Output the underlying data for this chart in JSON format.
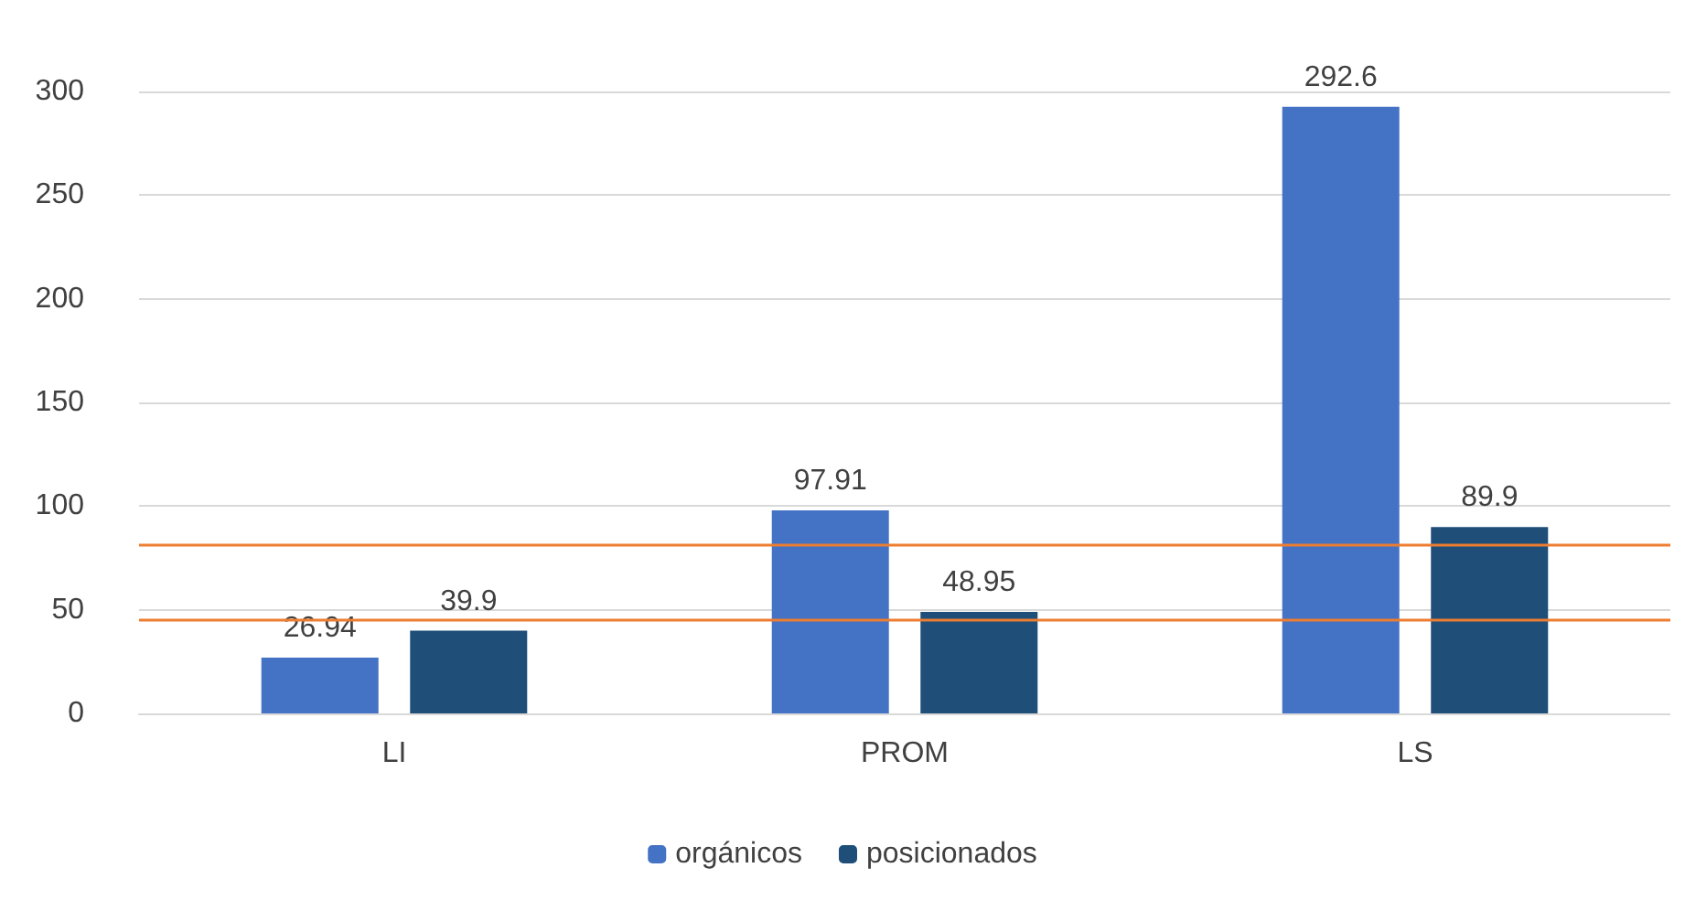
{
  "chart_data": {
    "type": "bar",
    "categories": [
      "LI",
      "PROM",
      "LS"
    ],
    "series": [
      {
        "name": "orgánicos",
        "color": "#4472c4",
        "values": [
          26.94,
          97.91,
          292.6
        ]
      },
      {
        "name": "posicionados",
        "color": "#1f4e79",
        "values": [
          39.9,
          48.95,
          89.9
        ]
      }
    ],
    "ylim": [
      0,
      300
    ],
    "yticks": [
      0,
      50,
      100,
      150,
      200,
      250,
      300
    ],
    "grid": "y",
    "legend": "bottom",
    "data_labels": true,
    "ref_lines": [
      {
        "axis": "y",
        "value": 81,
        "color": "#ed7d31"
      },
      {
        "axis": "y",
        "value": 45,
        "color": "#ed7d31"
      }
    ]
  }
}
